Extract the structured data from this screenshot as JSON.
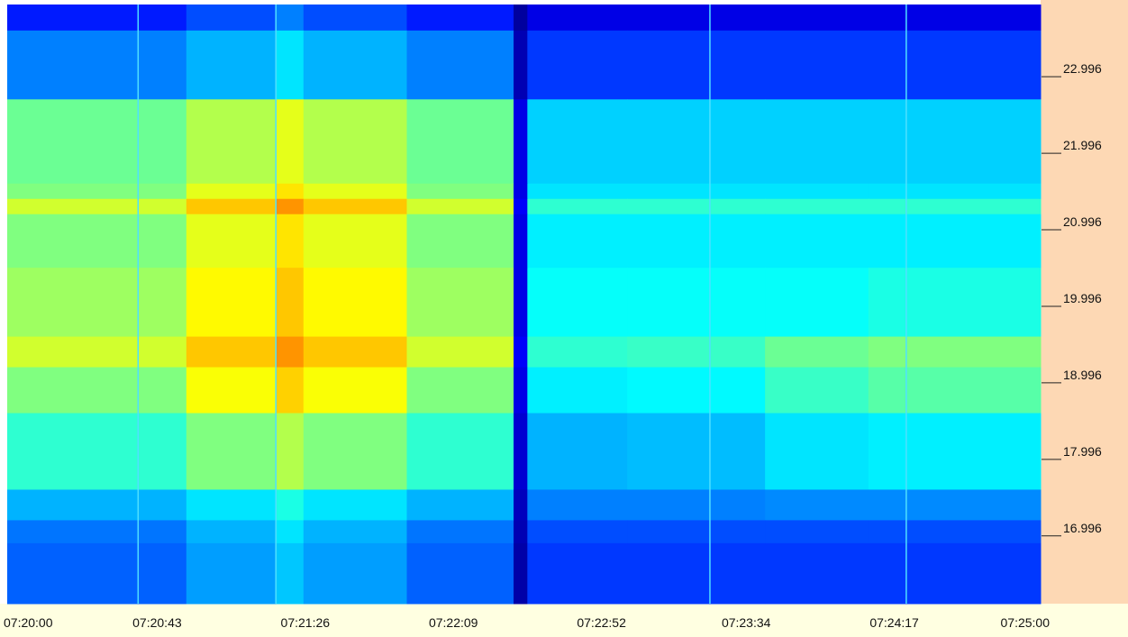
{
  "chart_data": {
    "type": "heatmap",
    "colormap": "jet",
    "clim": [
      0,
      10
    ],
    "xlim": [
      "07:20:00",
      "07:25:00"
    ],
    "xticks": [
      "07:20:00",
      "07:20:43",
      "07:21:26",
      "07:22:09",
      "07:22:52",
      "07:23:34",
      "07:24:17",
      "07:25:00"
    ],
    "ylim": [
      16.11,
      23.94
    ],
    "yticks": [
      22.996,
      21.996,
      20.996,
      19.996,
      18.996,
      17.996,
      16.996
    ],
    "x_edges": [
      "07:20:00",
      "07:20:52",
      "07:21:18",
      "07:21:26",
      "07:21:56",
      "07:22:27",
      "07:22:31",
      "07:23:00",
      "07:23:40",
      "07:24:10",
      "07:25:00"
    ],
    "y_edges": [
      23.94,
      23.6,
      22.7,
      21.6,
      21.4,
      21.2,
      20.5,
      19.6,
      19.2,
      18.6,
      17.6,
      17.2,
      16.9,
      16.11
    ],
    "values": [
      [
        1.5,
        2,
        2.5,
        2,
        1.5,
        0.3,
        1,
        1,
        1,
        1
      ],
      [
        2.5,
        3,
        3.5,
        3,
        2.5,
        0.5,
        1.8,
        1.8,
        1.8,
        1.8
      ],
      [
        4.8,
        5.5,
        6,
        5.5,
        4.8,
        1,
        3.3,
        3.3,
        3.3,
        3.3
      ],
      [
        5,
        6,
        6.5,
        6,
        5,
        1,
        3.5,
        3.5,
        3.5,
        3.5
      ],
      [
        5.8,
        6.8,
        7.3,
        6.8,
        5.8,
        1.2,
        4.2,
        4.2,
        4.2,
        4.2
      ],
      [
        5,
        6,
        6.5,
        6,
        5,
        1,
        3.6,
        3.6,
        3.6,
        3.6
      ],
      [
        5.3,
        6.3,
        6.8,
        6.3,
        5.3,
        1,
        3.8,
        3.8,
        3.8,
        4
      ],
      [
        5.8,
        6.8,
        7.3,
        6.8,
        5.8,
        1.2,
        4.2,
        4.3,
        4.8,
        5
      ],
      [
        5,
        6.2,
        6.7,
        6.2,
        5,
        1,
        3.6,
        3.7,
        4.3,
        4.6
      ],
      [
        4.2,
        5,
        5.5,
        5,
        4.2,
        0.8,
        3,
        3.1,
        3.5,
        3.6
      ],
      [
        3,
        3.5,
        4,
        3.5,
        3,
        0.6,
        2.5,
        2.5,
        2.6,
        2.6
      ],
      [
        2.4,
        3,
        3.5,
        3,
        2.4,
        0.5,
        2,
        2,
        2,
        2
      ],
      [
        2.2,
        2.8,
        3.2,
        2.8,
        2.2,
        0.4,
        1.8,
        1.8,
        1.8,
        1.8
      ]
    ],
    "markers": [
      "07:20:38",
      "07:21:18",
      "07:23:24",
      "07:24:21"
    ],
    "marker_color": "#4fe0ff"
  }
}
